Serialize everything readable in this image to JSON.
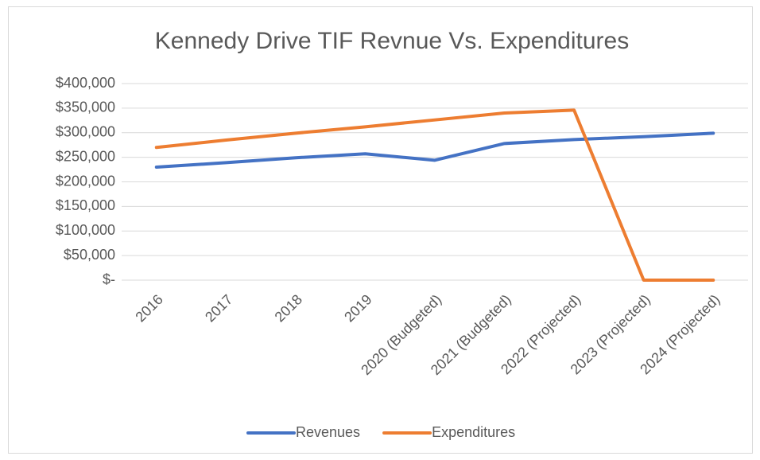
{
  "chart_data": {
    "type": "line",
    "title": "Kennedy Drive TIF Revnue Vs. Expenditures",
    "categories": [
      "2016",
      "2017",
      "2018",
      "2019",
      "2020 (Budgeted)",
      "2021 (Budgeted)",
      "2022 (Projected)",
      "2023 (Projected)",
      "2024 (Projected)"
    ],
    "series": [
      {
        "name": "Revenues",
        "color": "#4472c4",
        "values": [
          230000,
          239000,
          249000,
          257000,
          244000,
          278000,
          286000,
          292000,
          299000
        ]
      },
      {
        "name": "Expenditures",
        "color": "#ed7d31",
        "values": [
          270000,
          285000,
          299000,
          312000,
          326000,
          340000,
          346000,
          0,
          0
        ]
      }
    ],
    "ylim": [
      0,
      400000
    ],
    "yticks": [
      {
        "value": 0,
        "label": "$-"
      },
      {
        "value": 50000,
        "label": "$50,000"
      },
      {
        "value": 100000,
        "label": "$100,000"
      },
      {
        "value": 150000,
        "label": "$150,000"
      },
      {
        "value": 200000,
        "label": "$200,000"
      },
      {
        "value": 250000,
        "label": "$250,000"
      },
      {
        "value": 300000,
        "label": "$300,000"
      },
      {
        "value": 350000,
        "label": "$350,000"
      },
      {
        "value": 400000,
        "label": "$400,000"
      }
    ],
    "grid": true,
    "legend": "bottom"
  }
}
